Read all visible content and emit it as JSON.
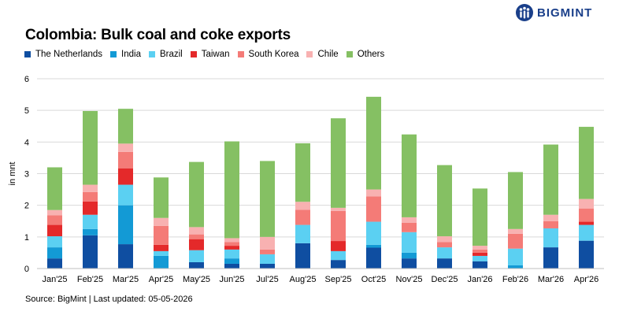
{
  "brand": {
    "name": "BIGMINT",
    "logo_icon": "brand-logo-icon"
  },
  "chart_data": {
    "type": "bar",
    "stacked": true,
    "title": "Colombia: Bulk coal and coke exports",
    "ylabel": "in mnt",
    "ylim": [
      0,
      6
    ],
    "yticks": [
      0,
      1,
      2,
      3,
      4,
      5,
      6
    ],
    "grid": true,
    "legend_position": "top-left",
    "categories": [
      "Jan'25",
      "Feb'25",
      "Mar'25",
      "Apr'25",
      "May'25",
      "Jun'25",
      "Jul'25",
      "Aug'25",
      "Sep'25",
      "Oct'25",
      "Nov'25",
      "Dec'25",
      "Jan'26",
      "Feb'26",
      "Mar'26",
      "Apr'26"
    ],
    "series": [
      {
        "name": "The Netherlands",
        "color": "#0f4ea1",
        "values": [
          0.32,
          1.05,
          0.77,
          0.0,
          0.2,
          0.15,
          0.15,
          0.8,
          0.27,
          0.66,
          0.32,
          0.32,
          0.23,
          0.0,
          0.67,
          0.88
        ]
      },
      {
        "name": "India",
        "color": "#139ad5",
        "values": [
          0.35,
          0.2,
          1.23,
          0.4,
          0.0,
          0.17,
          0.0,
          0.0,
          0.0,
          0.09,
          0.18,
          0.0,
          0.0,
          0.1,
          0.0,
          0.0
        ]
      },
      {
        "name": "Brazil",
        "color": "#5bd0f2",
        "values": [
          0.35,
          0.45,
          0.65,
          0.15,
          0.38,
          0.28,
          0.3,
          0.58,
          0.28,
          0.73,
          0.65,
          0.35,
          0.17,
          0.53,
          0.6,
          0.5
        ]
      },
      {
        "name": "Taiwan",
        "color": "#e4292a",
        "values": [
          0.36,
          0.42,
          0.52,
          0.2,
          0.35,
          0.12,
          0.0,
          0.0,
          0.32,
          0.0,
          0.0,
          0.0,
          0.1,
          0.0,
          0.0,
          0.1
        ]
      },
      {
        "name": "South Korea",
        "color": "#f47b77",
        "values": [
          0.3,
          0.3,
          0.52,
          0.6,
          0.15,
          0.12,
          0.15,
          0.48,
          0.95,
          0.8,
          0.3,
          0.17,
          0.1,
          0.47,
          0.23,
          0.42
        ]
      },
      {
        "name": "Chile",
        "color": "#f8b1b1",
        "values": [
          0.17,
          0.23,
          0.26,
          0.25,
          0.23,
          0.12,
          0.4,
          0.25,
          0.1,
          0.22,
          0.17,
          0.18,
          0.12,
          0.15,
          0.2,
          0.3
        ]
      },
      {
        "name": "Others",
        "color": "#85c063",
        "values": [
          1.35,
          2.33,
          1.1,
          1.28,
          2.06,
          3.06,
          2.4,
          1.85,
          2.83,
          2.93,
          2.62,
          2.25,
          1.81,
          1.8,
          2.22,
          2.28
        ]
      }
    ]
  },
  "source": "Source: BigMint | Last updated: 05-05-2026"
}
